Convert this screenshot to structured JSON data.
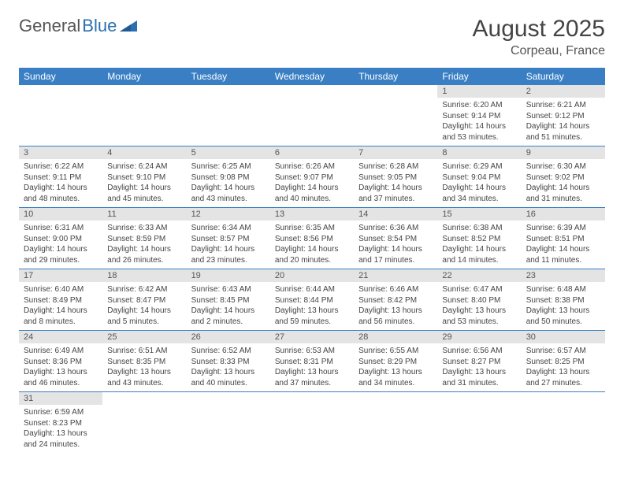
{
  "brand": {
    "part1": "General",
    "part2": "Blue"
  },
  "title": "August 2025",
  "location": "Corpeau, France",
  "colors": {
    "header_bg": "#3a7fc4",
    "header_text": "#ffffff",
    "daynum_bg": "#e4e4e4",
    "row_border": "#3a7fc4",
    "brand_blue": "#2b6fb0",
    "brand_gray": "#555555",
    "text": "#444444"
  },
  "weekdays": [
    "Sunday",
    "Monday",
    "Tuesday",
    "Wednesday",
    "Thursday",
    "Friday",
    "Saturday"
  ],
  "weeks": [
    [
      null,
      null,
      null,
      null,
      null,
      {
        "day": "1",
        "sunrise": "Sunrise: 6:20 AM",
        "sunset": "Sunset: 9:14 PM",
        "daylight": "Daylight: 14 hours and 53 minutes."
      },
      {
        "day": "2",
        "sunrise": "Sunrise: 6:21 AM",
        "sunset": "Sunset: 9:12 PM",
        "daylight": "Daylight: 14 hours and 51 minutes."
      }
    ],
    [
      {
        "day": "3",
        "sunrise": "Sunrise: 6:22 AM",
        "sunset": "Sunset: 9:11 PM",
        "daylight": "Daylight: 14 hours and 48 minutes."
      },
      {
        "day": "4",
        "sunrise": "Sunrise: 6:24 AM",
        "sunset": "Sunset: 9:10 PM",
        "daylight": "Daylight: 14 hours and 45 minutes."
      },
      {
        "day": "5",
        "sunrise": "Sunrise: 6:25 AM",
        "sunset": "Sunset: 9:08 PM",
        "daylight": "Daylight: 14 hours and 43 minutes."
      },
      {
        "day": "6",
        "sunrise": "Sunrise: 6:26 AM",
        "sunset": "Sunset: 9:07 PM",
        "daylight": "Daylight: 14 hours and 40 minutes."
      },
      {
        "day": "7",
        "sunrise": "Sunrise: 6:28 AM",
        "sunset": "Sunset: 9:05 PM",
        "daylight": "Daylight: 14 hours and 37 minutes."
      },
      {
        "day": "8",
        "sunrise": "Sunrise: 6:29 AM",
        "sunset": "Sunset: 9:04 PM",
        "daylight": "Daylight: 14 hours and 34 minutes."
      },
      {
        "day": "9",
        "sunrise": "Sunrise: 6:30 AM",
        "sunset": "Sunset: 9:02 PM",
        "daylight": "Daylight: 14 hours and 31 minutes."
      }
    ],
    [
      {
        "day": "10",
        "sunrise": "Sunrise: 6:31 AM",
        "sunset": "Sunset: 9:00 PM",
        "daylight": "Daylight: 14 hours and 29 minutes."
      },
      {
        "day": "11",
        "sunrise": "Sunrise: 6:33 AM",
        "sunset": "Sunset: 8:59 PM",
        "daylight": "Daylight: 14 hours and 26 minutes."
      },
      {
        "day": "12",
        "sunrise": "Sunrise: 6:34 AM",
        "sunset": "Sunset: 8:57 PM",
        "daylight": "Daylight: 14 hours and 23 minutes."
      },
      {
        "day": "13",
        "sunrise": "Sunrise: 6:35 AM",
        "sunset": "Sunset: 8:56 PM",
        "daylight": "Daylight: 14 hours and 20 minutes."
      },
      {
        "day": "14",
        "sunrise": "Sunrise: 6:36 AM",
        "sunset": "Sunset: 8:54 PM",
        "daylight": "Daylight: 14 hours and 17 minutes."
      },
      {
        "day": "15",
        "sunrise": "Sunrise: 6:38 AM",
        "sunset": "Sunset: 8:52 PM",
        "daylight": "Daylight: 14 hours and 14 minutes."
      },
      {
        "day": "16",
        "sunrise": "Sunrise: 6:39 AM",
        "sunset": "Sunset: 8:51 PM",
        "daylight": "Daylight: 14 hours and 11 minutes."
      }
    ],
    [
      {
        "day": "17",
        "sunrise": "Sunrise: 6:40 AM",
        "sunset": "Sunset: 8:49 PM",
        "daylight": "Daylight: 14 hours and 8 minutes."
      },
      {
        "day": "18",
        "sunrise": "Sunrise: 6:42 AM",
        "sunset": "Sunset: 8:47 PM",
        "daylight": "Daylight: 14 hours and 5 minutes."
      },
      {
        "day": "19",
        "sunrise": "Sunrise: 6:43 AM",
        "sunset": "Sunset: 8:45 PM",
        "daylight": "Daylight: 14 hours and 2 minutes."
      },
      {
        "day": "20",
        "sunrise": "Sunrise: 6:44 AM",
        "sunset": "Sunset: 8:44 PM",
        "daylight": "Daylight: 13 hours and 59 minutes."
      },
      {
        "day": "21",
        "sunrise": "Sunrise: 6:46 AM",
        "sunset": "Sunset: 8:42 PM",
        "daylight": "Daylight: 13 hours and 56 minutes."
      },
      {
        "day": "22",
        "sunrise": "Sunrise: 6:47 AM",
        "sunset": "Sunset: 8:40 PM",
        "daylight": "Daylight: 13 hours and 53 minutes."
      },
      {
        "day": "23",
        "sunrise": "Sunrise: 6:48 AM",
        "sunset": "Sunset: 8:38 PM",
        "daylight": "Daylight: 13 hours and 50 minutes."
      }
    ],
    [
      {
        "day": "24",
        "sunrise": "Sunrise: 6:49 AM",
        "sunset": "Sunset: 8:36 PM",
        "daylight": "Daylight: 13 hours and 46 minutes."
      },
      {
        "day": "25",
        "sunrise": "Sunrise: 6:51 AM",
        "sunset": "Sunset: 8:35 PM",
        "daylight": "Daylight: 13 hours and 43 minutes."
      },
      {
        "day": "26",
        "sunrise": "Sunrise: 6:52 AM",
        "sunset": "Sunset: 8:33 PM",
        "daylight": "Daylight: 13 hours and 40 minutes."
      },
      {
        "day": "27",
        "sunrise": "Sunrise: 6:53 AM",
        "sunset": "Sunset: 8:31 PM",
        "daylight": "Daylight: 13 hours and 37 minutes."
      },
      {
        "day": "28",
        "sunrise": "Sunrise: 6:55 AM",
        "sunset": "Sunset: 8:29 PM",
        "daylight": "Daylight: 13 hours and 34 minutes."
      },
      {
        "day": "29",
        "sunrise": "Sunrise: 6:56 AM",
        "sunset": "Sunset: 8:27 PM",
        "daylight": "Daylight: 13 hours and 31 minutes."
      },
      {
        "day": "30",
        "sunrise": "Sunrise: 6:57 AM",
        "sunset": "Sunset: 8:25 PM",
        "daylight": "Daylight: 13 hours and 27 minutes."
      }
    ],
    [
      {
        "day": "31",
        "sunrise": "Sunrise: 6:59 AM",
        "sunset": "Sunset: 8:23 PM",
        "daylight": "Daylight: 13 hours and 24 minutes."
      },
      null,
      null,
      null,
      null,
      null,
      null
    ]
  ]
}
